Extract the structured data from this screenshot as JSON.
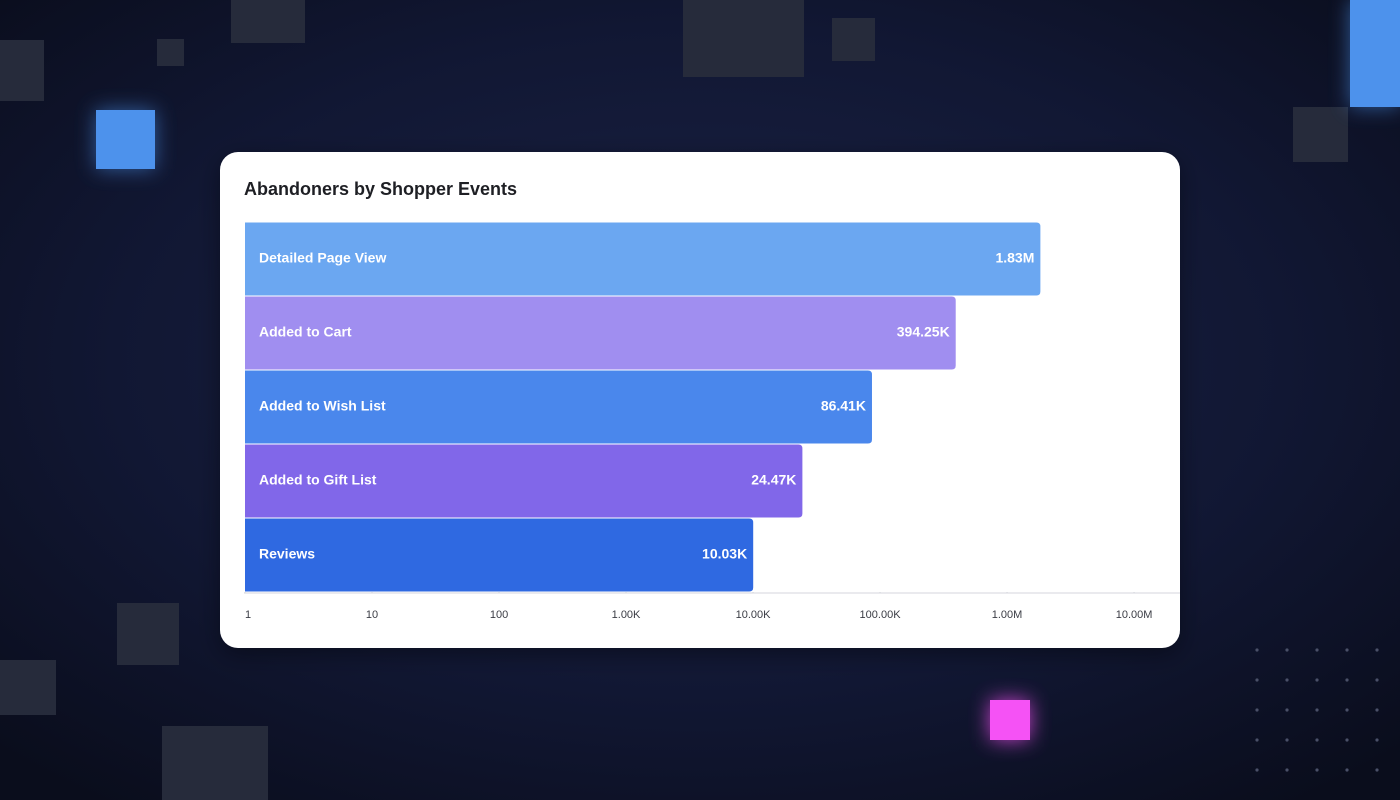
{
  "chart_data": {
    "type": "bar",
    "orientation": "horizontal",
    "title": "Abandoners by Shopper Events",
    "categories": [
      "Detailed Page View",
      "Added to Cart",
      "Added to Wish List",
      "Added to Gift List",
      "Reviews"
    ],
    "values": [
      1830000,
      394250,
      86410,
      24470,
      10030
    ],
    "value_labels": [
      "1.83M",
      "394.25K",
      "86.41K",
      "24.47K",
      "10.03K"
    ],
    "colors": [
      "#6ba7f1",
      "#a08ef0",
      "#4a87ec",
      "#8167e9",
      "#2f69e1"
    ],
    "log_scale": true,
    "xlim": [
      1,
      23000000
    ],
    "xticks": [
      1,
      10,
      100,
      {
        "value": 1000,
        "label": "1.00K"
      },
      {
        "value": 10000,
        "label": "10.00K"
      },
      {
        "value": 100000,
        "label": "100.00K"
      },
      {
        "value": 1000000,
        "label": "1.00M"
      },
      {
        "value": 10000000,
        "label": "10.00M"
      }
    ]
  }
}
